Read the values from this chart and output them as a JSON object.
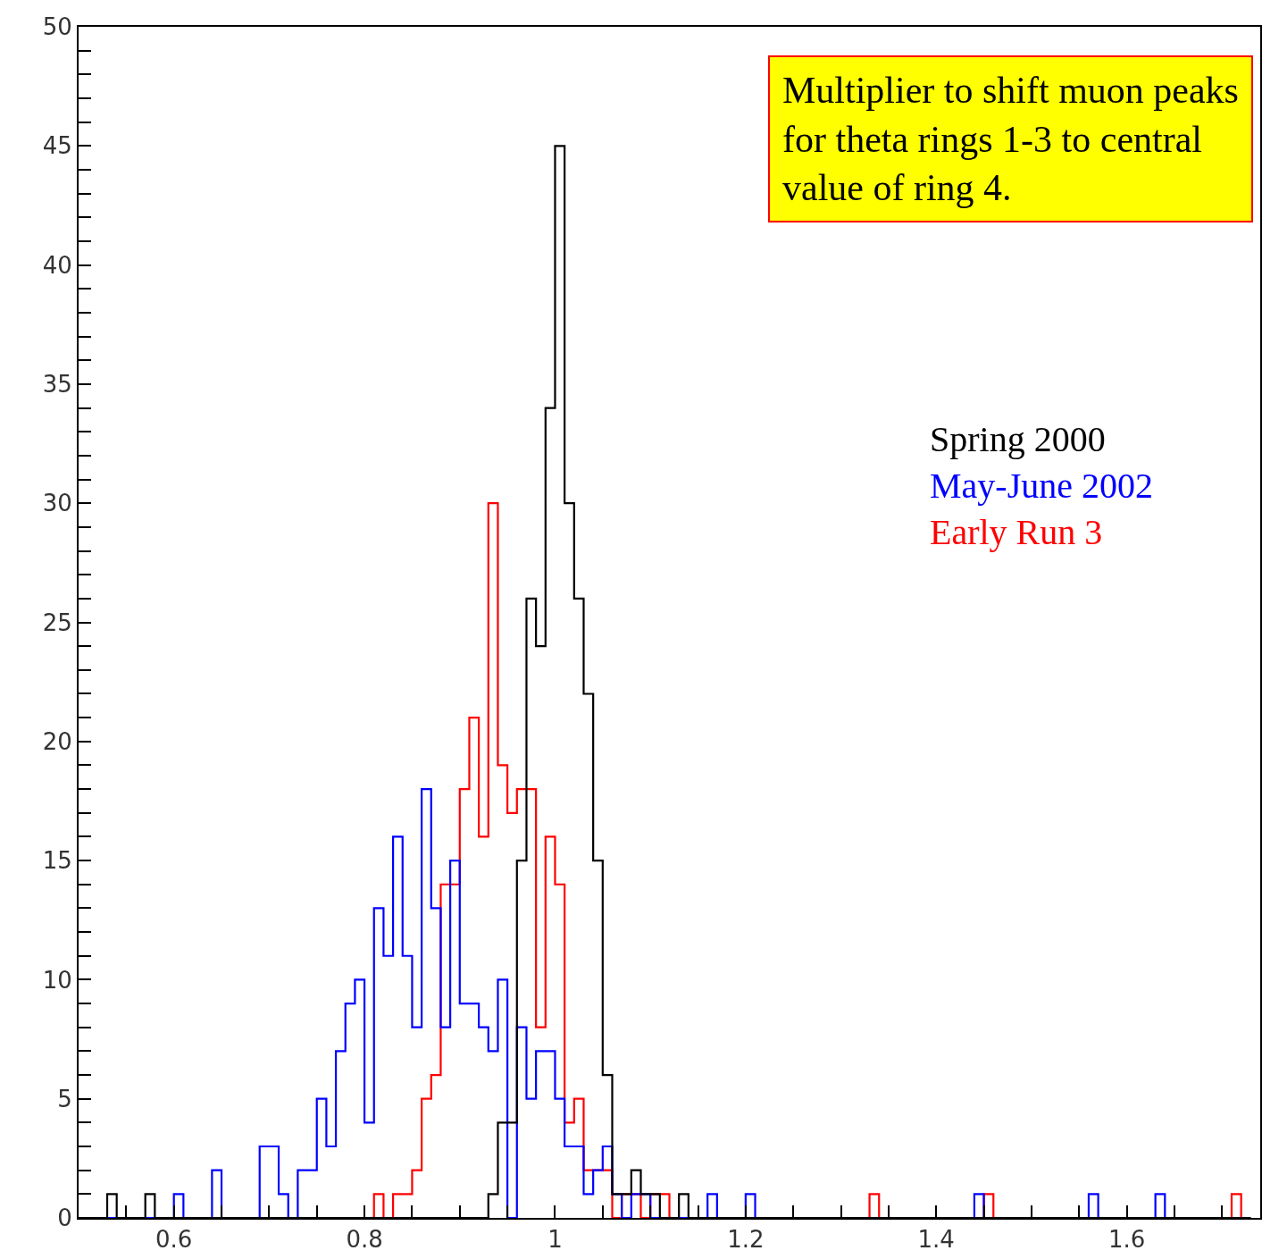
{
  "chart_data": {
    "type": "histogram",
    "bins": [
      0.5,
      0.51,
      0.52,
      0.53,
      0.54,
      0.55,
      0.56,
      0.57,
      0.58,
      0.59,
      0.6,
      0.61,
      0.62,
      0.63,
      0.64,
      0.65,
      0.66,
      0.67,
      0.68,
      0.69,
      0.7,
      0.71,
      0.72,
      0.73,
      0.74,
      0.75,
      0.76,
      0.77,
      0.78,
      0.79,
      0.8,
      0.81,
      0.82,
      0.83,
      0.84,
      0.85,
      0.86,
      0.87,
      0.88,
      0.89,
      0.9,
      0.91,
      0.92,
      0.93,
      0.94,
      0.95,
      0.96,
      0.97,
      0.98,
      0.99,
      1.0,
      1.01,
      1.02,
      1.03,
      1.04,
      1.05,
      1.06,
      1.07,
      1.08,
      1.09,
      1.1,
      1.11,
      1.12,
      1.13,
      1.14,
      1.15,
      1.16,
      1.17,
      1.18,
      1.19,
      1.2,
      1.21,
      1.22,
      1.23,
      1.24,
      1.25,
      1.26,
      1.27,
      1.28,
      1.29,
      1.3,
      1.31,
      1.32,
      1.33,
      1.34,
      1.35,
      1.36,
      1.37,
      1.38,
      1.39,
      1.4,
      1.41,
      1.42,
      1.43,
      1.44,
      1.45,
      1.46,
      1.47,
      1.48,
      1.49,
      1.5,
      1.51,
      1.52,
      1.53,
      1.54,
      1.55,
      1.56,
      1.57,
      1.58,
      1.59,
      1.6,
      1.61,
      1.62,
      1.63,
      1.64,
      1.65,
      1.66,
      1.67,
      1.68,
      1.69,
      1.7,
      1.71,
      1.72,
      1.73
    ],
    "series": [
      {
        "name": "Spring 2000",
        "color": "#000000",
        "values": [
          0,
          0,
          0,
          1,
          0,
          0,
          0,
          1,
          0,
          0,
          0,
          0,
          0,
          0,
          0,
          0,
          0,
          0,
          0,
          0,
          0,
          0,
          0,
          0,
          0,
          0,
          0,
          0,
          0,
          0,
          0,
          0,
          0,
          0,
          0,
          0,
          0,
          0,
          0,
          0,
          0,
          0,
          0,
          1,
          4,
          4,
          15,
          26,
          24,
          34,
          45,
          30,
          26,
          22,
          15,
          6,
          1,
          1,
          2,
          1,
          1,
          0,
          0,
          1,
          0,
          0,
          0,
          0,
          0,
          0,
          0,
          0,
          0,
          0,
          0,
          0,
          0,
          0,
          0,
          0,
          0,
          0,
          0,
          0,
          0,
          0,
          0,
          0,
          0,
          0,
          0,
          0,
          0,
          0,
          0,
          0,
          0,
          0,
          0,
          0,
          0,
          0,
          0,
          0,
          0,
          0,
          0,
          0,
          0,
          0,
          0,
          0,
          0,
          0,
          0,
          0,
          0,
          0,
          0,
          0,
          0,
          0,
          0
        ]
      },
      {
        "name": "May-June 2002",
        "color": "#0000ff",
        "values": [
          0,
          0,
          0,
          0,
          0,
          0,
          0,
          0,
          0,
          0,
          1,
          0,
          0,
          0,
          2,
          0,
          0,
          0,
          0,
          3,
          3,
          1,
          0,
          2,
          2,
          5,
          3,
          7,
          9,
          10,
          4,
          13,
          11,
          16,
          11,
          8,
          18,
          13,
          8,
          15,
          9,
          9,
          8,
          7,
          10,
          0,
          8,
          5,
          7,
          7,
          5,
          3,
          3,
          1,
          2,
          3,
          1,
          0,
          1,
          1,
          0,
          0,
          0,
          0,
          0,
          0,
          1,
          0,
          0,
          0,
          1,
          0,
          0,
          0,
          0,
          0,
          0,
          0,
          0,
          0,
          0,
          0,
          0,
          0,
          0,
          0,
          0,
          0,
          0,
          0,
          0,
          0,
          0,
          0,
          1,
          0,
          0,
          0,
          0,
          0,
          0,
          0,
          0,
          0,
          0,
          0,
          1,
          0,
          0,
          0,
          0,
          0,
          0,
          1,
          0,
          0,
          0,
          0,
          0,
          0,
          0,
          0,
          0
        ]
      },
      {
        "name": "Early Run 3",
        "color": "#ff0000",
        "values": [
          0,
          0,
          0,
          0,
          0,
          0,
          0,
          0,
          0,
          0,
          0,
          0,
          0,
          0,
          0,
          0,
          0,
          0,
          0,
          0,
          0,
          0,
          0,
          0,
          0,
          0,
          0,
          0,
          0,
          0,
          0,
          1,
          0,
          1,
          1,
          2,
          5,
          6,
          14,
          14,
          18,
          21,
          16,
          30,
          19,
          17,
          18,
          18,
          8,
          16,
          14,
          4,
          5,
          2,
          2,
          2,
          0,
          1,
          1,
          0,
          1,
          1,
          0,
          0,
          0,
          0,
          0,
          0,
          0,
          0,
          0,
          0,
          0,
          0,
          0,
          0,
          0,
          0,
          0,
          0,
          0,
          0,
          0,
          1,
          0,
          0,
          0,
          0,
          0,
          0,
          0,
          0,
          0,
          0,
          0,
          1,
          0,
          0,
          0,
          0,
          0,
          0,
          0,
          0,
          0,
          0,
          0,
          0,
          0,
          0,
          0,
          0,
          0,
          0,
          0,
          0,
          0,
          0,
          0,
          0,
          0,
          1,
          0
        ]
      }
    ],
    "xlim": [
      0.5,
      1.74
    ],
    "xticks": [
      {
        "value": 0.55,
        "label": null
      },
      0.6,
      {
        "value": 0.65,
        "label": null
      },
      {
        "value": 0.7,
        "label": null
      },
      {
        "value": 0.75,
        "label": null
      },
      0.8,
      {
        "value": 0.85,
        "label": null
      },
      {
        "value": 0.9,
        "label": null
      },
      {
        "value": 0.95,
        "label": null
      },
      1,
      {
        "value": 1.05,
        "label": null
      },
      {
        "value": 1.1,
        "label": null
      },
      {
        "value": 1.15,
        "label": null
      },
      1.2,
      {
        "value": 1.25,
        "label": null
      },
      {
        "value": 1.3,
        "label": null
      },
      {
        "value": 1.35,
        "label": null
      },
      1.4,
      {
        "value": 1.45,
        "label": null
      },
      {
        "value": 1.5,
        "label": null
      },
      {
        "value": 1.55,
        "label": null
      },
      1.6,
      {
        "value": 1.65,
        "label": null
      },
      {
        "value": 1.7,
        "label": null
      }
    ],
    "ylim": [
      0,
      50
    ],
    "yticks": [
      0,
      {
        "value": 1,
        "label": null
      },
      {
        "value": 2,
        "label": null
      },
      {
        "value": 3,
        "label": null
      },
      {
        "value": 4,
        "label": null
      },
      5,
      {
        "value": 6,
        "label": null
      },
      {
        "value": 7,
        "label": null
      },
      {
        "value": 8,
        "label": null
      },
      {
        "value": 9,
        "label": null
      },
      10,
      {
        "value": 11,
        "label": null
      },
      {
        "value": 12,
        "label": null
      },
      {
        "value": 13,
        "label": null
      },
      {
        "value": 14,
        "label": null
      },
      15,
      {
        "value": 16,
        "label": null
      },
      {
        "value": 17,
        "label": null
      },
      {
        "value": 18,
        "label": null
      },
      {
        "value": 19,
        "label": null
      },
      20,
      {
        "value": 21,
        "label": null
      },
      {
        "value": 22,
        "label": null
      },
      {
        "value": 23,
        "label": null
      },
      {
        "value": 24,
        "label": null
      },
      25,
      {
        "value": 26,
        "label": null
      },
      {
        "value": 27,
        "label": null
      },
      {
        "value": 28,
        "label": null
      },
      {
        "value": 29,
        "label": null
      },
      30,
      {
        "value": 31,
        "label": null
      },
      {
        "value": 32,
        "label": null
      },
      {
        "value": 33,
        "label": null
      },
      {
        "value": 34,
        "label": null
      },
      35,
      {
        "value": 36,
        "label": null
      },
      {
        "value": 37,
        "label": null
      },
      {
        "value": 38,
        "label": null
      },
      {
        "value": 39,
        "label": null
      },
      40,
      {
        "value": 41,
        "label": null
      },
      {
        "value": 42,
        "label": null
      },
      {
        "value": 43,
        "label": null
      },
      {
        "value": 44,
        "label": null
      },
      45,
      {
        "value": 46,
        "label": null
      },
      {
        "value": 47,
        "label": null
      },
      {
        "value": 48,
        "label": null
      },
      {
        "value": 49,
        "label": null
      },
      50
    ],
    "legend": "right",
    "annotations": [
      "Multiplier to shift muon peaks\nfor theta rings 1-3 to central\nvalue of ring 4."
    ]
  }
}
